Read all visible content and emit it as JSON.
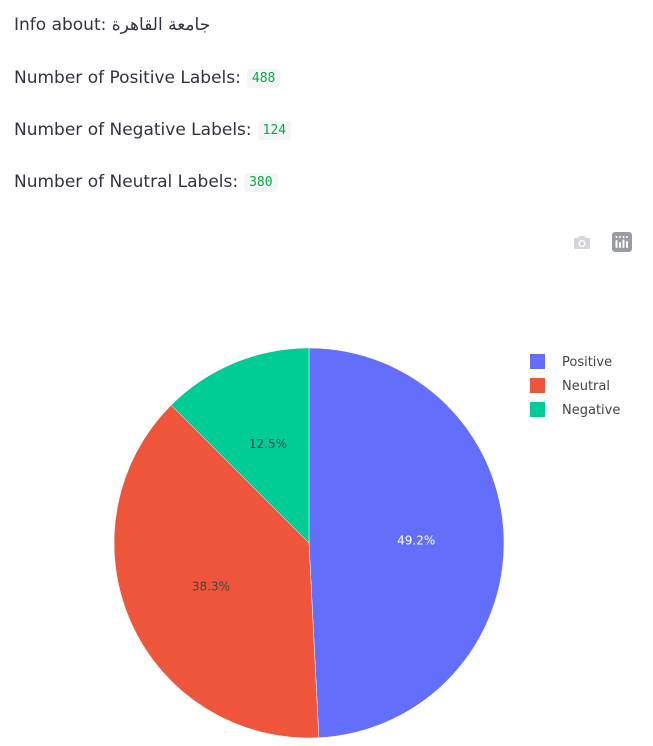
{
  "header": {
    "info_prefix": "Info about:",
    "university_name": "جامعة القاهرة"
  },
  "stats": {
    "positive_label": "Number of Positive Labels:",
    "positive_value": "488",
    "negative_label": "Number of Negative Labels:",
    "negative_value": "124",
    "neutral_label": "Number of Neutral Labels:",
    "neutral_value": "380"
  },
  "modebar": {
    "download_icon": "camera-icon",
    "logo_icon": "plotly-logo-icon"
  },
  "chart_data": {
    "type": "pie",
    "title": "",
    "slices": [
      {
        "name": "Positive",
        "value": 488,
        "percent_label": "49.2%",
        "color": "#636efa",
        "label_color": "#ffffff"
      },
      {
        "name": "Neutral",
        "value": 380,
        "percent_label": "38.3%",
        "color": "#ef553b",
        "label_color": "#444444"
      },
      {
        "name": "Negative",
        "value": 124,
        "percent_label": "12.5%",
        "color": "#00cc96",
        "label_color": "#444444"
      }
    ],
    "legend_position": "top-right",
    "direction": "clockwise",
    "start_angle": "12 o'clock"
  }
}
